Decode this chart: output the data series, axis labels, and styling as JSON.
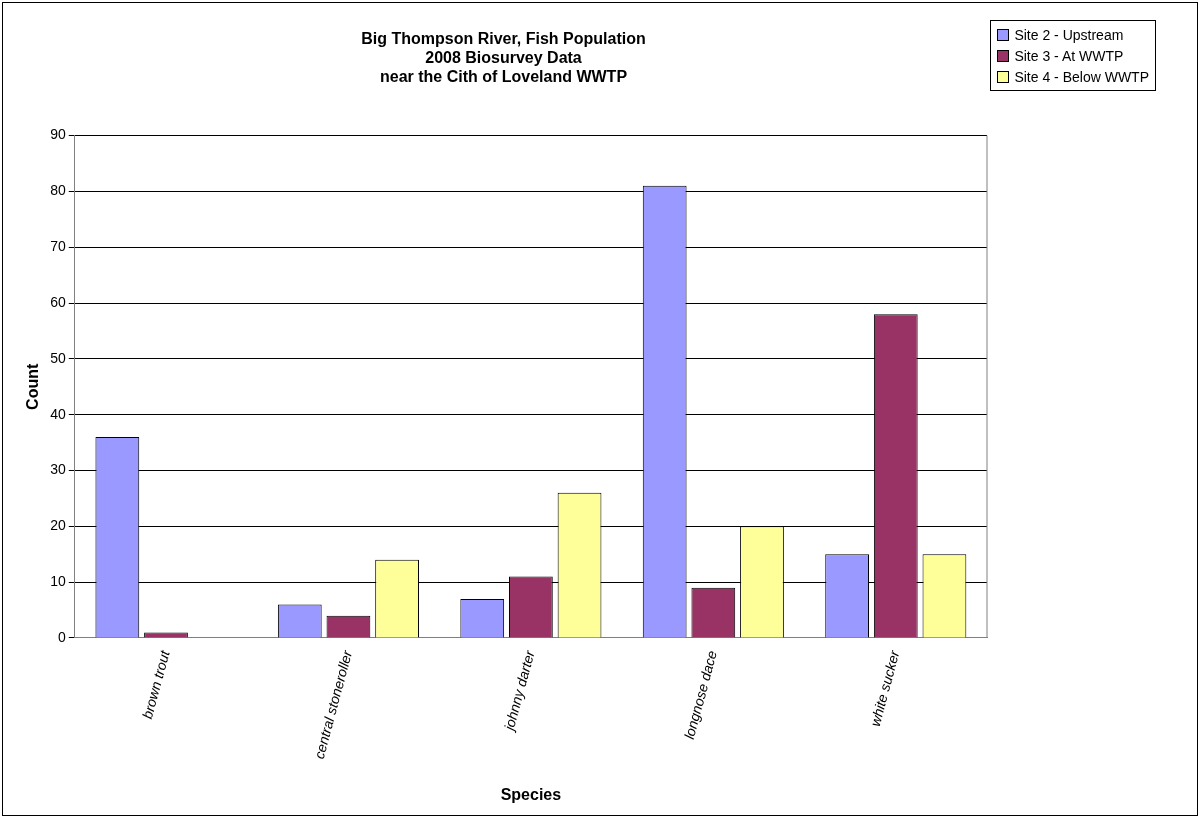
{
  "chart_data": {
    "type": "bar",
    "title": "Big Thompson River, Fish Population\n2008 Biosurvey Data\nnear the Cith of Loveland WWTP",
    "xlabel": "Species",
    "ylabel": "Count",
    "categories": [
      "brown trout",
      "central stoneroller",
      "johnny darter",
      "longnose dace",
      "white sucker"
    ],
    "series": [
      {
        "name": "Site 2 - Upstream",
        "color": "#9999ff",
        "values": [
          36,
          6,
          7,
          81,
          15
        ]
      },
      {
        "name": "Site 3 - At WWTP",
        "color": "#993366",
        "values": [
          1,
          4,
          11,
          9,
          58
        ]
      },
      {
        "name": "Site 4 - Below WWTP",
        "color": "#ffff99",
        "values": [
          0,
          14,
          26,
          20,
          15
        ]
      }
    ],
    "ylim": [
      0,
      90
    ],
    "yticks": [
      0,
      10,
      20,
      30,
      40,
      50,
      60,
      70,
      80,
      90
    ],
    "grid": "y",
    "legend": "top right"
  }
}
